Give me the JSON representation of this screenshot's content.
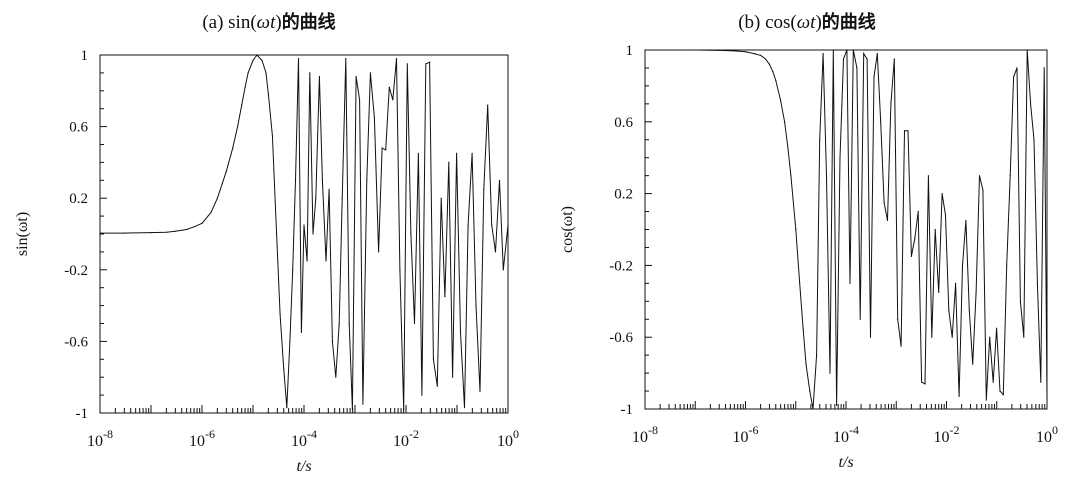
{
  "chart_data": [
    {
      "type": "line",
      "title": "(a) sin(ωt)的曲线",
      "title_prefix": "(a) sin(",
      "title_var": "ωt",
      "title_mid": ")",
      "title_cn": "的曲线",
      "xlabel": "t/s",
      "ylabel": "sin(ωt)",
      "xscale": "log",
      "xlim": [
        1e-08,
        1
      ],
      "ylim": [
        -1,
        1
      ],
      "xticks": [
        {
          "base": "10",
          "exp": "-8"
        },
        {
          "base": "10",
          "exp": "-6"
        },
        {
          "base": "10",
          "exp": "-4"
        },
        {
          "base": "10",
          "exp": "-2"
        },
        {
          "base": "10",
          "exp": "0"
        }
      ],
      "yticks": [
        "1",
        "0.6",
        "0.2",
        "-0.2",
        "-0.6",
        "-1"
      ],
      "series": [
        {
          "x": [
            1e-08,
            3e-08,
            1e-07,
            2e-07,
            3e-07,
            5e-07,
            7e-07,
            1e-06,
            1.5e-06,
            2e-06,
            3e-06,
            4e-06,
            5e-06,
            6e-06,
            7e-06,
            8e-06,
            1e-05,
            1.2e-05,
            1.5e-05,
            1.8e-05,
            2e-05,
            2.4e-05,
            2.9e-05,
            3.4e-05,
            4e-05,
            4.6e-05,
            5.3e-05,
            6e-05,
            6.8e-05,
            7.8e-05,
            8.9e-05,
            0.0001,
            0.000115,
            0.00013,
            0.00015,
            0.00017,
            0.0002,
            0.00023,
            0.00027,
            0.00031,
            0.00036,
            0.00042,
            0.00049,
            0.00056,
            0.00066,
            0.00077,
            0.00089,
            0.00105,
            0.00123,
            0.00143,
            0.0017,
            0.002,
            0.0024,
            0.0029,
            0.0034,
            0.004,
            0.0047,
            0.0055,
            0.0065,
            0.0076,
            0.009,
            0.0106,
            0.0125,
            0.0147,
            0.0175,
            0.0205,
            0.0245,
            0.029,
            0.0345,
            0.041,
            0.049,
            0.058,
            0.069,
            0.082,
            0.098,
            0.117,
            0.14,
            0.165,
            0.198,
            0.236,
            0.282,
            0.336,
            0.4,
            0.48,
            0.57,
            0.68,
            0.81,
            1
          ],
          "y": [
            0.005,
            0.005,
            0.008,
            0.01,
            0.015,
            0.025,
            0.04,
            0.06,
            0.12,
            0.2,
            0.35,
            0.48,
            0.6,
            0.72,
            0.82,
            0.9,
            0.97,
            1.0,
            0.97,
            0.9,
            0.78,
            0.55,
            0.0,
            -0.45,
            -0.75,
            -0.97,
            -0.6,
            -0.2,
            0.3,
            0.98,
            -0.55,
            0.05,
            -0.15,
            0.9,
            0.0,
            0.2,
            0.88,
            0.3,
            -0.15,
            0.25,
            -0.6,
            -0.8,
            -0.5,
            0.2,
            0.98,
            -0.5,
            -0.98,
            0.88,
            0.75,
            -0.95,
            0.3,
            0.9,
            0.65,
            -0.1,
            0.48,
            0.47,
            0.82,
            0.75,
            0.98,
            -0.2,
            -0.98,
            0.95,
            0.0,
            -0.5,
            0.45,
            -0.9,
            0.95,
            0.96,
            -0.7,
            -0.85,
            0.2,
            -0.35,
            0.4,
            -0.8,
            0.45,
            -0.55,
            -0.97,
            0.05,
            0.45,
            -0.4,
            -0.88,
            0.25,
            0.72,
            0.05,
            -0.1,
            0.3,
            -0.2,
            0.05
          ]
        }
      ]
    },
    {
      "type": "line",
      "title": "(b) cos(ωt)的曲线",
      "title_prefix": "(b) cos(",
      "title_var": "ωt",
      "title_mid": ")",
      "title_cn": "的曲线",
      "xlabel": "t/s",
      "ylabel": "cos(ωt)",
      "xscale": "log",
      "xlim": [
        1e-08,
        1
      ],
      "ylim": [
        -1,
        1
      ],
      "xticks": [
        {
          "base": "10",
          "exp": "-8"
        },
        {
          "base": "10",
          "exp": "-6"
        },
        {
          "base": "10",
          "exp": "-4"
        },
        {
          "base": "10",
          "exp": "-2"
        },
        {
          "base": "10",
          "exp": "0"
        }
      ],
      "yticks": [
        "1",
        "0.6",
        "0.2",
        "-0.2",
        "-0.6",
        "-1"
      ],
      "series": [
        {
          "x": [
            1e-08,
            1e-07,
            3e-07,
            6e-07,
            1e-06,
            1.5e-06,
            2e-06,
            2.5e-06,
            3e-06,
            3.5e-06,
            4e-06,
            5e-06,
            6e-06,
            7e-06,
            8e-06,
            1e-05,
            1.2e-05,
            1.4e-05,
            1.6e-05,
            1.9e-05,
            2.2e-05,
            2.6e-05,
            3e-05,
            3.5e-05,
            4.1e-05,
            4.8e-05,
            5.6e-05,
            6.5e-05,
            7.6e-05,
            8.9e-05,
            0.000104,
            0.00012,
            0.00014,
            0.000165,
            0.000192,
            0.000225,
            0.000263,
            0.000307,
            0.00036,
            0.00042,
            0.00049,
            0.000573,
            0.00067,
            0.000783,
            0.000915,
            0.00107,
            0.00125,
            0.00146,
            0.00171,
            0.002,
            0.00234,
            0.00274,
            0.0032,
            0.00374,
            0.00437,
            0.00511,
            0.00597,
            0.00698,
            0.00816,
            0.00954,
            0.0111,
            0.013,
            0.0152,
            0.0178,
            0.0208,
            0.0243,
            0.0284,
            0.0332,
            0.0388,
            0.0454,
            0.0531,
            0.062,
            0.0725,
            0.0848,
            0.0991,
            0.116,
            0.135,
            0.158,
            0.185,
            0.216,
            0.253,
            0.296,
            0.346,
            0.404,
            0.472,
            0.552,
            0.645,
            0.754,
            0.881,
            1
          ],
          "y": [
            1.0,
            1.0,
            0.998,
            0.995,
            0.99,
            0.98,
            0.97,
            0.95,
            0.92,
            0.88,
            0.83,
            0.72,
            0.6,
            0.45,
            0.3,
            0.0,
            -0.3,
            -0.55,
            -0.75,
            -0.9,
            -1.0,
            -0.7,
            0.5,
            0.98,
            0.3,
            -0.8,
            1.0,
            -0.98,
            0.4,
            0.95,
            1.0,
            -0.3,
            1.0,
            0.9,
            -0.5,
            0.98,
            0.95,
            -0.6,
            0.85,
            0.98,
            0.6,
            0.15,
            0.05,
            0.7,
            0.95,
            -0.5,
            -0.65,
            0.55,
            0.55,
            -0.15,
            -0.05,
            0.1,
            -0.85,
            -0.86,
            0.3,
            -0.6,
            0.0,
            -0.35,
            0.2,
            0.08,
            -0.45,
            -0.6,
            -0.3,
            -0.93,
            -0.2,
            0.05,
            -0.45,
            -0.75,
            -0.35,
            0.3,
            0.22,
            -0.95,
            -0.6,
            -0.85,
            -0.55,
            -0.9,
            -0.92,
            -0.2,
            0.3,
            0.85,
            0.9,
            -0.4,
            -0.6,
            1.0,
            0.7,
            0.5,
            -0.3,
            -0.85,
            0.9,
            -0.95
          ]
        }
      ]
    }
  ]
}
